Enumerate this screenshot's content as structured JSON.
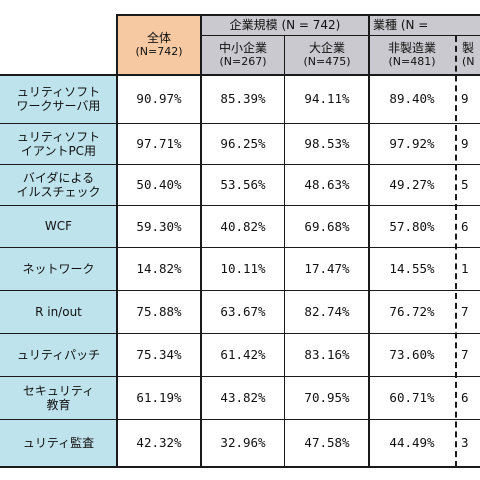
{
  "header": {
    "total": {
      "label": "全体",
      "n": "(N=742)"
    },
    "groups": [
      {
        "label": "企業規模 (N = 742)"
      },
      {
        "label": "業種 (N ="
      }
    ],
    "subcols": [
      {
        "label": "中小企業",
        "n": "(N=267)"
      },
      {
        "label": "大企業",
        "n": "(N=475)"
      },
      {
        "label": "非製造業",
        "n": "(N=481)"
      },
      {
        "label": "製",
        "n": "(N"
      }
    ]
  },
  "rows": [
    {
      "label": [
        "ュリティソフト",
        "ワークサーバ用"
      ],
      "values": [
        "90.97%",
        "85.39%",
        "94.11%",
        "89.40%",
        "9"
      ]
    },
    {
      "label": [
        "ュリティソフト",
        "イアントPC用"
      ],
      "values": [
        "97.71%",
        "96.25%",
        "98.53%",
        "97.92%",
        "9"
      ]
    },
    {
      "label": [
        "バイダによる",
        "イルスチェック"
      ],
      "values": [
        "50.40%",
        "53.56%",
        "48.63%",
        "49.27%",
        "5"
      ]
    },
    {
      "label": [
        "WCF"
      ],
      "values": [
        "59.30%",
        "40.82%",
        "69.68%",
        "57.80%",
        "6"
      ]
    },
    {
      "label": [
        "ネットワーク"
      ],
      "values": [
        "14.82%",
        "10.11%",
        "17.47%",
        "14.55%",
        "1"
      ]
    },
    {
      "label": [
        "R in/out"
      ],
      "values": [
        "75.88%",
        "63.67%",
        "82.74%",
        "76.72%",
        "7"
      ]
    },
    {
      "label": [
        "ュリティパッチ"
      ],
      "values": [
        "75.34%",
        "61.42%",
        "83.16%",
        "73.60%",
        "7"
      ]
    },
    {
      "label": [
        "セキュリティ",
        "教育"
      ],
      "values": [
        "61.19%",
        "43.82%",
        "70.95%",
        "60.71%",
        "6"
      ]
    },
    {
      "label": [
        "ュリティ監査"
      ],
      "values": [
        "42.32%",
        "32.96%",
        "47.58%",
        "44.49%",
        "3"
      ]
    }
  ]
}
